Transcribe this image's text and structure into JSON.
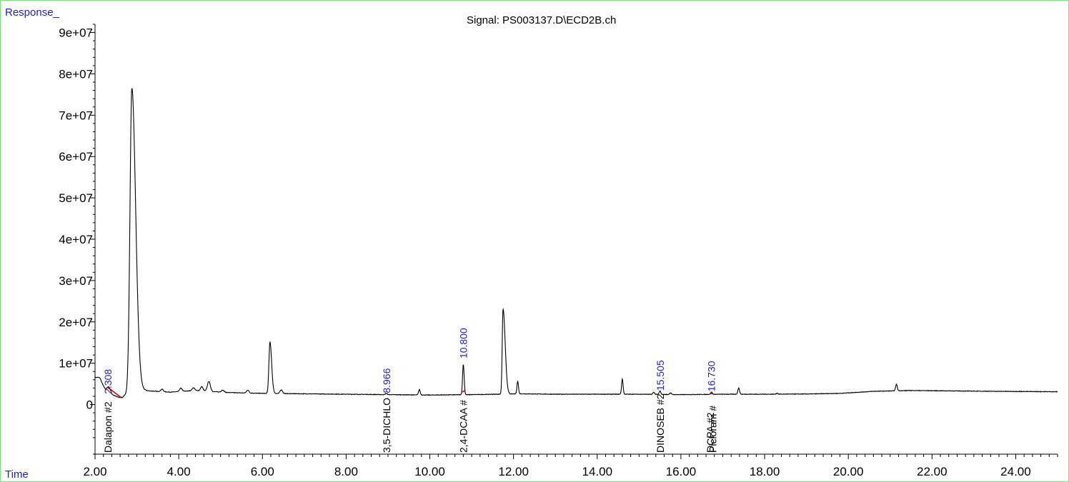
{
  "chart_data": {
    "type": "line",
    "title": "Signal: PS003137.D\\ECD2B.ch",
    "ylabel": "Response_",
    "xlabel": "Time",
    "xlim": [
      2.0,
      25.0
    ],
    "ylim": [
      -12000000,
      92000000
    ],
    "x_ticks": [
      {
        "value": 2.0,
        "label": "2.00"
      },
      {
        "value": 4.0,
        "label": "4.00"
      },
      {
        "value": 6.0,
        "label": "6.00"
      },
      {
        "value": 8.0,
        "label": "8.00"
      },
      {
        "value": 10.0,
        "label": "10.00"
      },
      {
        "value": 12.0,
        "label": "12.00"
      },
      {
        "value": 14.0,
        "label": "14.00"
      },
      {
        "value": 16.0,
        "label": "16.00"
      },
      {
        "value": 18.0,
        "label": "18.00"
      },
      {
        "value": 20.0,
        "label": "20.00"
      },
      {
        "value": 22.0,
        "label": "22.00"
      },
      {
        "value": 24.0,
        "label": "24.00"
      }
    ],
    "y_ticks": [
      {
        "value": 0,
        "label": "0"
      },
      {
        "value": 10000000,
        "label": "1e+07"
      },
      {
        "value": 20000000,
        "label": "2e+07"
      },
      {
        "value": 30000000,
        "label": "3e+07"
      },
      {
        "value": 40000000,
        "label": "4e+07"
      },
      {
        "value": 50000000,
        "label": "5e+07"
      },
      {
        "value": 60000000,
        "label": "6e+07"
      },
      {
        "value": 70000000,
        "label": "7e+07"
      },
      {
        "value": 80000000,
        "label": "8e+07"
      },
      {
        "value": 90000000,
        "label": "9e+07"
      }
    ],
    "baseline_level": 2400000,
    "baseline_points": [
      [
        2.0,
        6500000
      ],
      [
        2.12,
        5800000
      ],
      [
        2.25,
        3600000
      ],
      [
        2.4,
        2400000
      ],
      [
        2.55,
        1800000
      ],
      [
        2.65,
        1700000
      ],
      [
        2.75,
        2600000
      ],
      [
        3.05,
        3600000
      ],
      [
        3.3,
        3300000
      ],
      [
        3.8,
        3000000
      ],
      [
        4.4,
        3400000
      ],
      [
        5.2,
        2900000
      ],
      [
        6.0,
        2700000
      ],
      [
        7.0,
        2600000
      ],
      [
        8.0,
        2500000
      ],
      [
        9.0,
        2400000
      ],
      [
        10.0,
        2300000
      ],
      [
        11.0,
        2400000
      ],
      [
        12.2,
        2600000
      ],
      [
        13.0,
        2500000
      ],
      [
        14.0,
        2500000
      ],
      [
        15.0,
        2500000
      ],
      [
        16.0,
        2400000
      ],
      [
        17.0,
        2500000
      ],
      [
        18.0,
        2500000
      ],
      [
        19.0,
        2550000
      ],
      [
        19.8,
        2700000
      ],
      [
        20.6,
        3200000
      ],
      [
        21.5,
        3400000
      ],
      [
        22.5,
        3300000
      ],
      [
        23.5,
        3200000
      ],
      [
        25.0,
        3100000
      ]
    ],
    "peaks": [
      {
        "rt": 2.1,
        "height": 600000,
        "width": 0.05
      },
      {
        "rt": 2.33,
        "height": 1300000,
        "width": 0.04
      },
      {
        "rt": 2.88,
        "height": 73500000,
        "width": 0.045,
        "tail": 0.09
      },
      {
        "rt": 3.6,
        "height": 600000,
        "width": 0.03
      },
      {
        "rt": 4.05,
        "height": 800000,
        "width": 0.03
      },
      {
        "rt": 4.35,
        "height": 700000,
        "width": 0.03
      },
      {
        "rt": 4.55,
        "height": 1000000,
        "width": 0.03
      },
      {
        "rt": 4.72,
        "height": 2400000,
        "width": 0.035
      },
      {
        "rt": 5.05,
        "height": 500000,
        "width": 0.03
      },
      {
        "rt": 5.65,
        "height": 700000,
        "width": 0.03
      },
      {
        "rt": 6.18,
        "height": 12400000,
        "width": 0.025,
        "tail": 0.04
      },
      {
        "rt": 6.45,
        "height": 900000,
        "width": 0.03
      },
      {
        "rt": 8.96,
        "height": 300000,
        "width": 0.02
      },
      {
        "rt": 9.75,
        "height": 1300000,
        "width": 0.02
      },
      {
        "rt": 10.8,
        "height": 7300000,
        "width": 0.018,
        "tail": 0.02
      },
      {
        "rt": 11.75,
        "height": 20600000,
        "width": 0.02,
        "tail": 0.05
      },
      {
        "rt": 12.1,
        "height": 3100000,
        "width": 0.018
      },
      {
        "rt": 14.6,
        "height": 3700000,
        "width": 0.018
      },
      {
        "rt": 15.35,
        "height": 500000,
        "width": 0.02
      },
      {
        "rt": 15.5,
        "height": 800000,
        "width": 0.02
      },
      {
        "rt": 15.75,
        "height": 400000,
        "width": 0.02
      },
      {
        "rt": 16.73,
        "height": 500000,
        "width": 0.02
      },
      {
        "rt": 17.38,
        "height": 1500000,
        "width": 0.02
      },
      {
        "rt": 18.3,
        "height": 200000,
        "width": 0.02
      },
      {
        "rt": 21.15,
        "height": 1600000,
        "width": 0.02
      }
    ],
    "integrations": [
      {
        "from": 2.3,
        "to": 2.62,
        "color": "#cc0000"
      },
      {
        "from": 10.76,
        "to": 10.84,
        "color": "#cc0000"
      },
      {
        "from": 16.7,
        "to": 16.76,
        "color": "#cc0000"
      }
    ],
    "retention_labels": [
      {
        "x": 2.308,
        "y": 2200000,
        "text": "2.308"
      },
      {
        "x": 8.966,
        "y": 2400000,
        "text": "8.966"
      },
      {
        "x": 10.8,
        "y": 10800000,
        "text": "10.800"
      },
      {
        "x": 15.505,
        "y": 3000000,
        "text": "15.505"
      },
      {
        "x": 16.73,
        "y": 2800000,
        "text": "16.730"
      }
    ],
    "compound_labels": [
      {
        "x": 2.308,
        "text": "Dalapon #2"
      },
      {
        "x": 8.966,
        "text": "3,5-DICHLO"
      },
      {
        "x": 10.8,
        "text": "2,4-DCAA #"
      },
      {
        "x": 15.505,
        "text": "DINOSEB #2"
      },
      {
        "x": 16.7,
        "text": "DCPA #2"
      },
      {
        "x": 16.76,
        "text": "Picloram #"
      }
    ],
    "colors": {
      "trace": "#000000",
      "integration": "#cc0000",
      "rt_label": "#1f1fd6",
      "frame": "#7fe07f"
    }
  }
}
